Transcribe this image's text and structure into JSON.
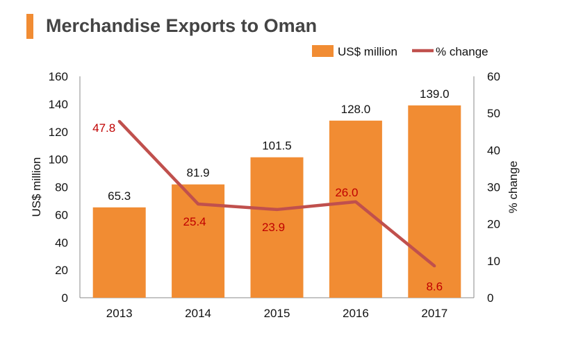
{
  "chart_data": {
    "type": "bar",
    "title": "Merchandise Exports to Oman",
    "categories": [
      "2013",
      "2014",
      "2015",
      "2016",
      "2017"
    ],
    "series": [
      {
        "name": "US$ million",
        "type": "bar",
        "axis": "left",
        "color": "#f18c33",
        "values": [
          65.3,
          81.9,
          101.5,
          128.0,
          139.0
        ],
        "labels": [
          "65.3",
          "81.9",
          "101.5",
          "128.0",
          "139.0"
        ]
      },
      {
        "name": "% change",
        "type": "line",
        "axis": "right",
        "color": "#c0504d",
        "label_color": "#c00000",
        "values": [
          47.8,
          25.4,
          23.9,
          26.0,
          8.6
        ],
        "labels": [
          "47.8",
          "25.4",
          "23.9",
          "26.0",
          "8.6"
        ]
      }
    ],
    "ylabel": "US$ million",
    "ylim": [
      0,
      160
    ],
    "yticks": [
      "0",
      "20",
      "40",
      "60",
      "80",
      "100",
      "120",
      "140",
      "160"
    ],
    "y2label": "% change",
    "y2lim": [
      0,
      60
    ],
    "y2ticks": [
      "0",
      "10",
      "20",
      "30",
      "40",
      "50",
      "60"
    ],
    "legend_position": "top-right",
    "grid": false
  }
}
